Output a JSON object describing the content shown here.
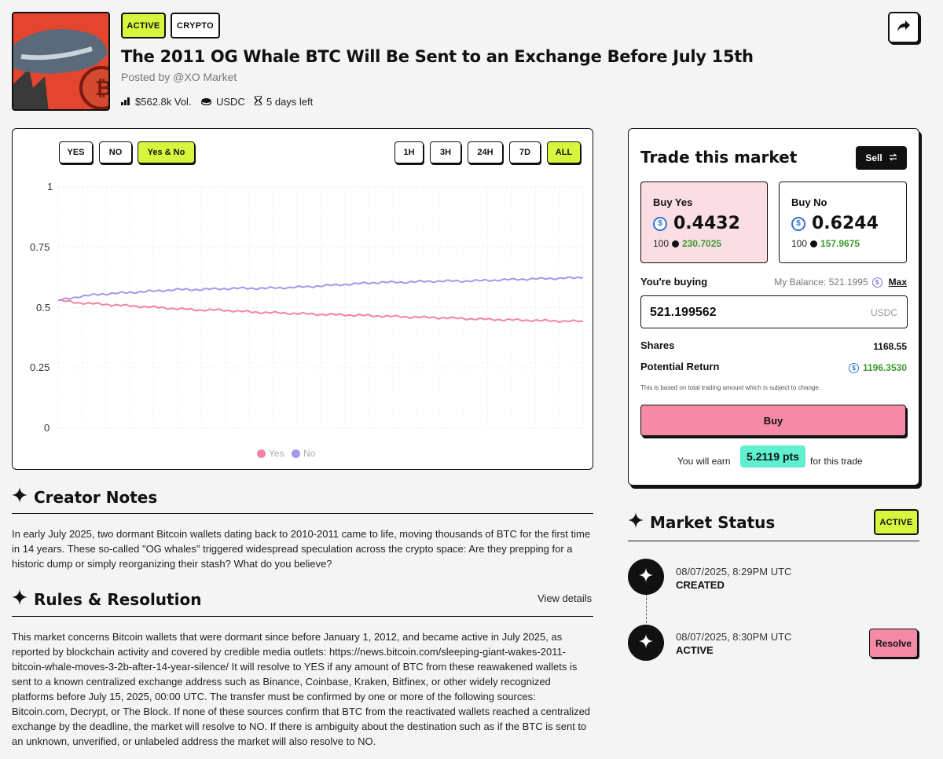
{
  "header": {
    "tags": [
      "ACTIVE",
      "CRYPTO"
    ],
    "title": "The 2011 OG Whale BTC Will Be Sent to an Exchange Before July 15th",
    "posted_by": "Posted by @XO Market",
    "volume": "$562.8k Vol.",
    "currency": "USDC",
    "time_left": "5 days left",
    "icons": [
      "bar-chart-icon",
      "coins-icon",
      "hourglass-icon",
      "share-icon"
    ]
  },
  "chart_controls": {
    "outcome_filters": [
      "YES",
      "NO",
      "Yes & No"
    ],
    "outcome_selected": "Yes & No",
    "time_ranges": [
      "1H",
      "3H",
      "24H",
      "7D",
      "ALL"
    ],
    "time_selected": "ALL"
  },
  "chart_data": {
    "type": "line",
    "ylim": [
      0,
      1
    ],
    "yticks": [
      "1",
      "0.75",
      "0.5",
      "0.25",
      "0"
    ],
    "grid": true,
    "legend_position": "bottom-center",
    "series": [
      {
        "name": "Yes",
        "color": "#f2839f",
        "values": [
          0.53,
          0.52,
          0.515,
          0.51,
          0.505,
          0.5,
          0.495,
          0.49,
          0.49,
          0.485,
          0.48,
          0.478,
          0.475,
          0.472,
          0.47,
          0.468,
          0.465,
          0.462,
          0.46,
          0.458,
          0.455,
          0.452,
          0.45,
          0.448,
          0.446,
          0.444,
          0.443
        ]
      },
      {
        "name": "No",
        "color": "#a995f0",
        "values": [
          0.53,
          0.545,
          0.555,
          0.56,
          0.565,
          0.57,
          0.575,
          0.575,
          0.578,
          0.58,
          0.58,
          0.582,
          0.585,
          0.59,
          0.595,
          0.6,
          0.605,
          0.605,
          0.608,
          0.61,
          0.61,
          0.612,
          0.615,
          0.618,
          0.62,
          0.622,
          0.624
        ]
      }
    ]
  },
  "trade": {
    "title": "Trade this market",
    "sell_label": "Sell",
    "buy_yes": {
      "label": "Buy Yes",
      "price": "0.4432",
      "qty": "100",
      "return": "230.7025"
    },
    "buy_no": {
      "label": "Buy No",
      "price": "0.6244",
      "qty": "100",
      "return": "157.9675"
    },
    "buying_label": "You're buying",
    "balance": "My Balance: 521.1995",
    "max_label": "Max",
    "amount": "521.199562",
    "amount_currency": "USDC",
    "shares_label": "Shares",
    "shares_value": "1168.55",
    "return_label": "Potential Return",
    "return_value": "1196.3530",
    "disclaimer": "This is based on total trading amount which is subject to change.",
    "buy_label": "Buy",
    "earn_prefix": "You will earn",
    "earn_pts": "5.2119 pts",
    "earn_suffix": "for this trade",
    "colors": {
      "yes_bg": "#fbdde4",
      "accent": "#d8f53d",
      "buy": "#f48aa6",
      "pts": "#5ef0cf"
    }
  },
  "creator_notes": {
    "title": "Creator Notes",
    "text": "In early July 2025, two dormant Bitcoin wallets dating back to 2010-2011 came to life, moving thousands of BTC for the first time in 14 years. These so-called \"OG whales\" triggered widespread speculation across the crypto space: Are they prepping for a historic dump or simply reorganizing their stash? What do you believe?"
  },
  "rules": {
    "title": "Rules & Resolution",
    "view_details": "View details",
    "text": "This market concerns Bitcoin wallets that were dormant since before January 1, 2012, and became active in July 2025, as reported by blockchain activity and covered by credible media outlets: https://news.bitcoin.com/sleeping-giant-wakes-2011-bitcoin-whale-moves-3-2b-after-14-year-silence/ It will resolve to YES if any amount of BTC from these reawakened wallets is sent to a known centralized exchange address such as Binance, Coinbase, Kraken, Bitfinex, or other widely recognized platforms before July 15, 2025, 00:00 UTC. The transfer must be confirmed by one or more of the following sources: Bitcoin.com, Decrypt, or The Block. If none of these sources confirm that BTC from the reactivated wallets reached a centralized exchange by the deadline, the market will resolve to NO. If there is ambiguity about the destination such as if the BTC is sent to an unknown, unverified, or unlabeled address the market will also resolve to NO."
  },
  "market_status": {
    "title": "Market Status",
    "badge": "ACTIVE",
    "events": [
      {
        "date": "08/07/2025, 8:29PM UTC",
        "state": "CREATED"
      },
      {
        "date": "08/07/2025, 8:30PM UTC",
        "state": "ACTIVE"
      }
    ],
    "resolve_label": "Resolve"
  }
}
